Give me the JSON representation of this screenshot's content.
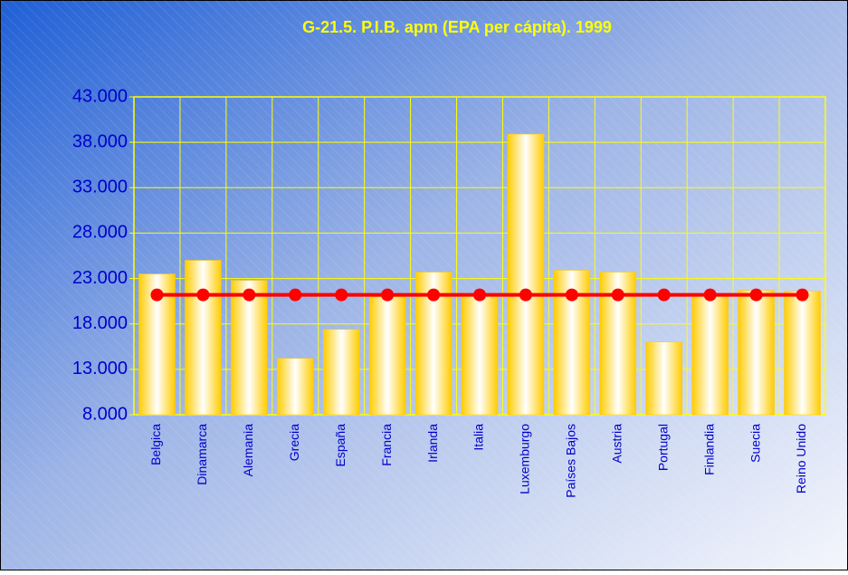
{
  "chart_data": {
    "type": "bar",
    "title": "G-21.5. P.I.B.  apm (EPA per cápita). 1999",
    "categories": [
      "Belgica",
      "Dinamarca",
      "Alemania",
      "Grecia",
      "España",
      "Francia",
      "Irlanda",
      "Italia",
      "Luxemburgo",
      "Países Bajos",
      "Austria",
      "Portugal",
      "Finlandia",
      "Suecia",
      "Reino Unido"
    ],
    "series": [
      {
        "type": "bar",
        "color": "#ffcc00",
        "values": [
          23500,
          25000,
          22800,
          14200,
          17400,
          21000,
          23700,
          21200,
          38900,
          23900,
          23700,
          16000,
          21100,
          21700,
          21600
        ]
      },
      {
        "type": "line",
        "color": "#ff0000",
        "values": [
          21200,
          21200,
          21200,
          21200,
          21200,
          21200,
          21200,
          21200,
          21200,
          21200,
          21200,
          21200,
          21200,
          21200,
          21200
        ]
      }
    ],
    "ylim": [
      8000,
      43000
    ],
    "yticks": [
      {
        "value": 8000,
        "label": "8.000"
      },
      {
        "value": 13000,
        "label": "13.000"
      },
      {
        "value": 18000,
        "label": "18.000"
      },
      {
        "value": 23000,
        "label": "23.000"
      },
      {
        "value": 28000,
        "label": "28.000"
      },
      {
        "value": 33000,
        "label": "33.000"
      },
      {
        "value": 38000,
        "label": "38.000"
      },
      {
        "value": 43000,
        "label": "43.000"
      }
    ],
    "grid": true
  }
}
